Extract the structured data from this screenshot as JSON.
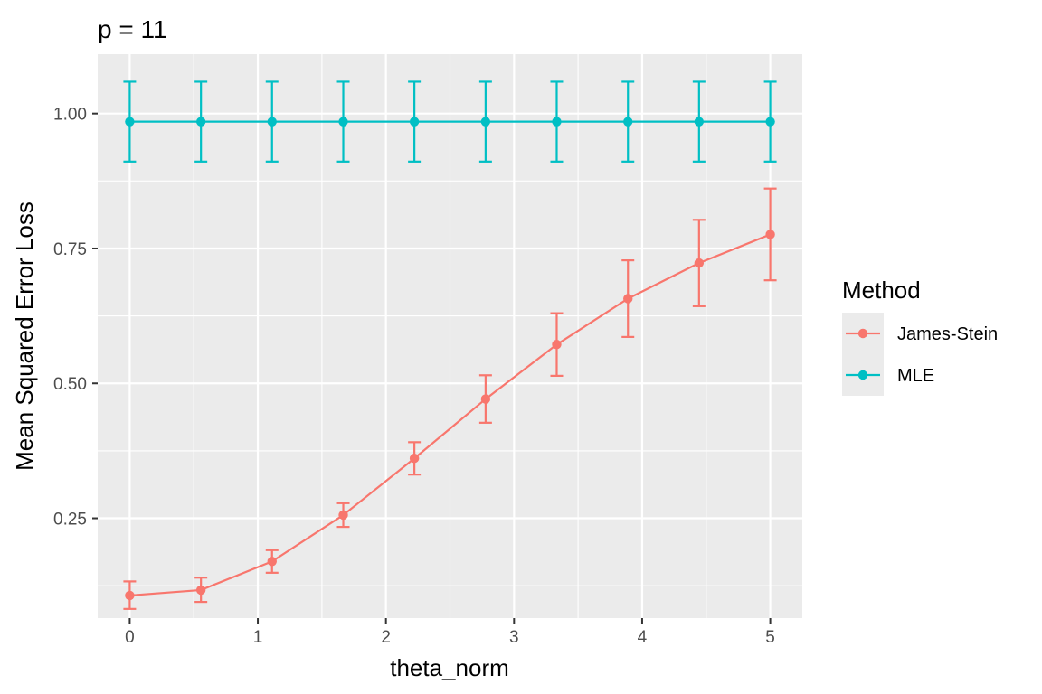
{
  "chart_data": {
    "type": "line",
    "title": "p = 11",
    "xlabel": "theta_norm",
    "ylabel": "Mean Squared Error Loss",
    "xlim": [
      -0.25,
      5.25
    ],
    "ylim": [
      0.065,
      1.11
    ],
    "x_ticks": [
      0,
      1,
      2,
      3,
      4,
      5
    ],
    "y_ticks": [
      0.25,
      0.5,
      0.75,
      1.0
    ],
    "x_tick_labels": [
      "0",
      "1",
      "2",
      "3",
      "4",
      "5"
    ],
    "y_tick_labels": [
      "0.25",
      "0.50",
      "0.75",
      "1.00"
    ],
    "x": [
      0,
      0.556,
      1.111,
      1.667,
      2.222,
      2.778,
      3.333,
      3.889,
      4.444,
      5.0
    ],
    "grid": true,
    "legend": {
      "title": "Method",
      "position": "right"
    },
    "series": [
      {
        "name": "James-Stein",
        "color": "#F8766D",
        "values": [
          0.107,
          0.117,
          0.17,
          0.256,
          0.361,
          0.471,
          0.572,
          0.657,
          0.723,
          0.776
        ],
        "error_low": [
          0.082,
          0.095,
          0.149,
          0.234,
          0.331,
          0.427,
          0.514,
          0.586,
          0.643,
          0.691
        ],
        "error_high": [
          0.133,
          0.14,
          0.191,
          0.278,
          0.391,
          0.515,
          0.63,
          0.728,
          0.803,
          0.861
        ]
      },
      {
        "name": "MLE",
        "color": "#00BFC4",
        "values": [
          0.985,
          0.985,
          0.985,
          0.985,
          0.985,
          0.985,
          0.985,
          0.985,
          0.985,
          0.985
        ],
        "error_low": [
          0.911,
          0.911,
          0.911,
          0.911,
          0.911,
          0.911,
          0.911,
          0.911,
          0.911,
          0.911
        ],
        "error_high": [
          1.059,
          1.059,
          1.059,
          1.059,
          1.059,
          1.059,
          1.059,
          1.059,
          1.059,
          1.059
        ]
      }
    ]
  }
}
